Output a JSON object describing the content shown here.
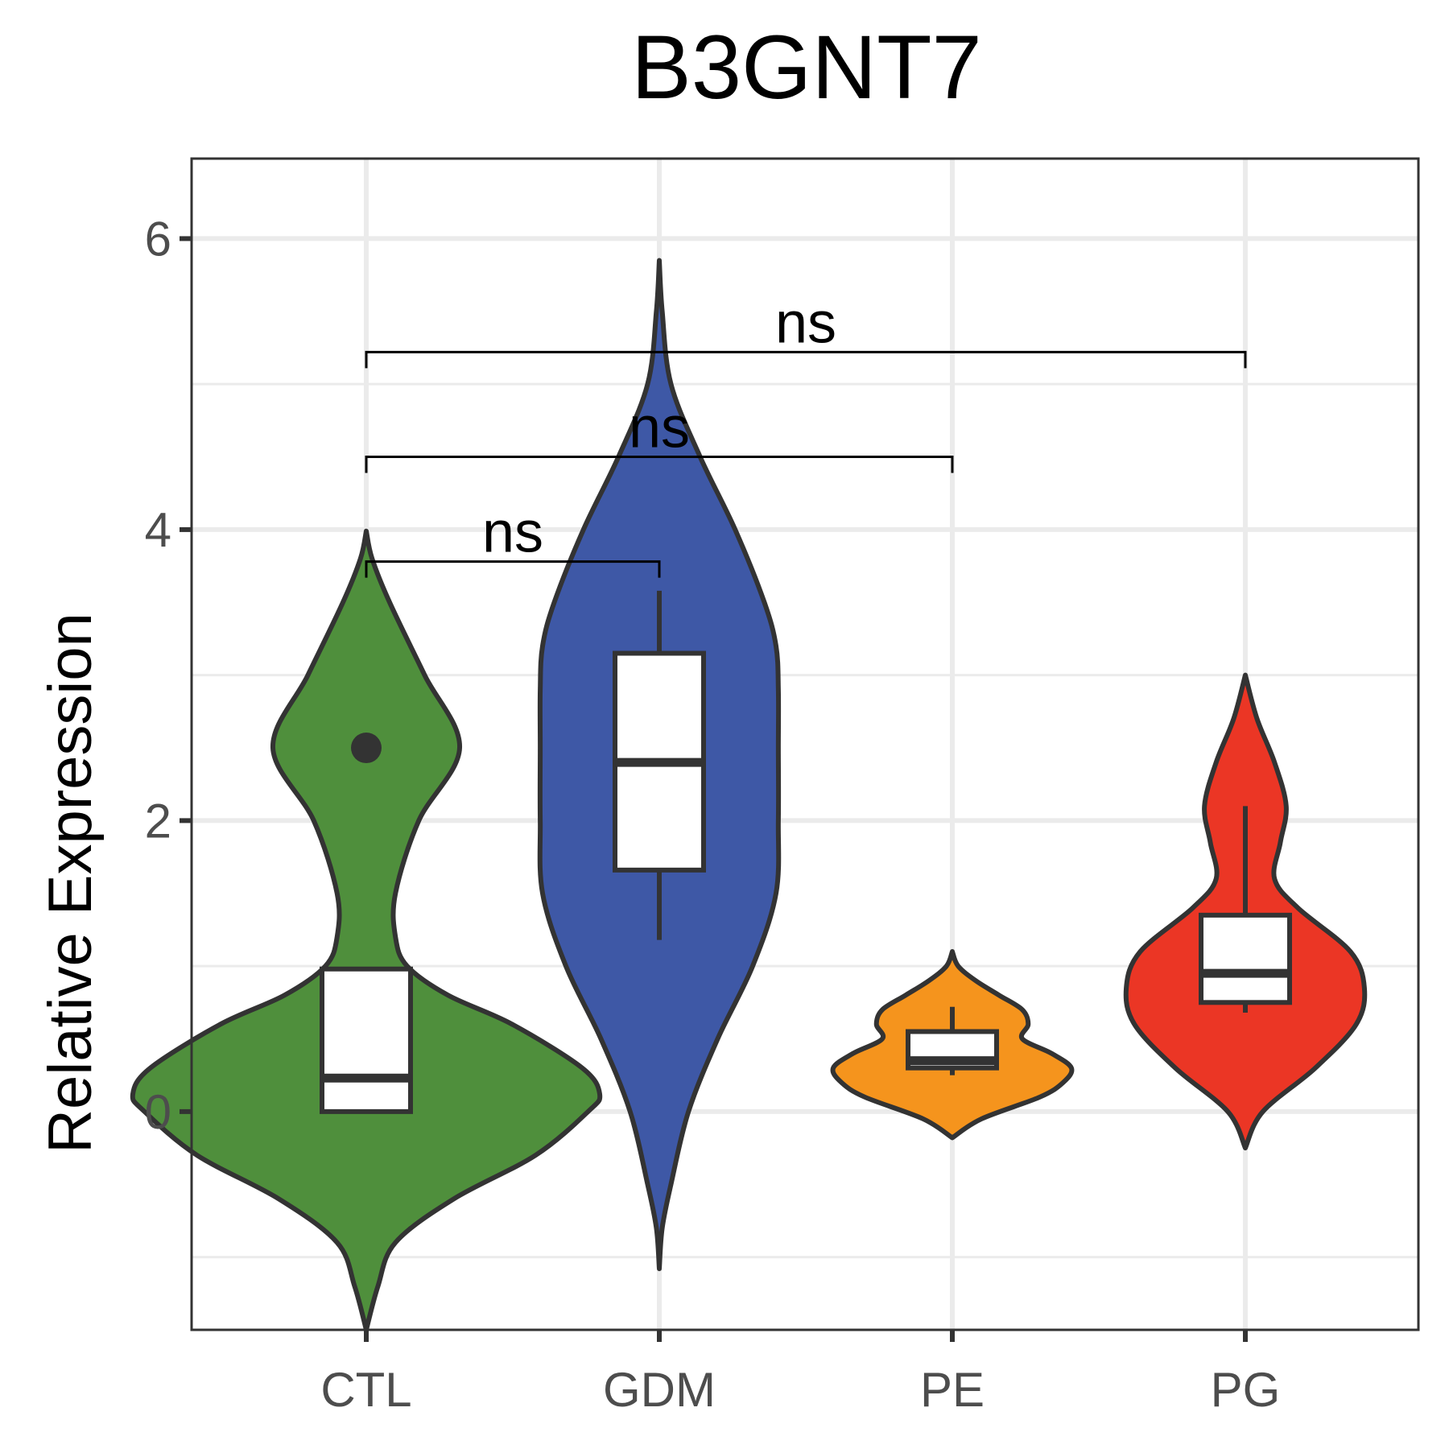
{
  "chart_data": {
    "type": "violin",
    "title": "B3GNT7",
    "xlabel": "",
    "ylabel": "Relative Expression",
    "ylim": [
      -1.5,
      6.55
    ],
    "yticks": [
      0,
      2,
      4,
      6
    ],
    "categories": [
      "CTL",
      "GDM",
      "PE",
      "PG"
    ],
    "grid": true,
    "legend": "none",
    "groups": [
      {
        "name": "CTL",
        "color": "#4f8f3c",
        "box": {
          "lower_whisker": 0,
          "q1": 0,
          "median": 0.23,
          "q3": 0.98,
          "upper_whisker": 0.98
        },
        "outliers": [
          2.5
        ],
        "violin_profile": [
          [
            -1.5,
            0.0
          ],
          [
            -1.2,
            0.02
          ],
          [
            -0.9,
            0.05
          ],
          [
            -0.6,
            0.15
          ],
          [
            -0.3,
            0.29
          ],
          [
            0.0,
            0.38
          ],
          [
            0.12,
            0.4
          ],
          [
            0.3,
            0.37
          ],
          [
            0.6,
            0.25
          ],
          [
            0.8,
            0.14
          ],
          [
            1.0,
            0.07
          ],
          [
            1.2,
            0.05
          ],
          [
            1.5,
            0.05
          ],
          [
            2.0,
            0.09
          ],
          [
            2.5,
            0.16
          ],
          [
            3.0,
            0.1
          ],
          [
            3.5,
            0.04
          ],
          [
            3.8,
            0.01
          ],
          [
            3.99,
            0.0
          ]
        ]
      },
      {
        "name": "GDM",
        "color": "#3e58a6",
        "box": {
          "lower_whisker": 1.18,
          "q1": 1.66,
          "median": 2.4,
          "q3": 3.15,
          "upper_whisker": 3.58
        },
        "outliers": [],
        "violin_profile": [
          [
            -1.08,
            0.0
          ],
          [
            -0.8,
            0.005
          ],
          [
            -0.5,
            0.02
          ],
          [
            0.0,
            0.05
          ],
          [
            0.5,
            0.1
          ],
          [
            1.0,
            0.16
          ],
          [
            1.5,
            0.2
          ],
          [
            2.0,
            0.204
          ],
          [
            2.5,
            0.204
          ],
          [
            2.9,
            0.204
          ],
          [
            3.2,
            0.2
          ],
          [
            3.5,
            0.18
          ],
          [
            4.0,
            0.13
          ],
          [
            4.5,
            0.07
          ],
          [
            5.0,
            0.02
          ],
          [
            5.5,
            0.005
          ],
          [
            5.85,
            0.0
          ]
        ]
      },
      {
        "name": "PE",
        "color": "#f5941d",
        "box": {
          "lower_whisker": 0.25,
          "q1": 0.3,
          "median": 0.35,
          "q3": 0.55,
          "upper_whisker": 0.72
        },
        "outliers": [],
        "violin_profile": [
          [
            -0.18,
            0.0
          ],
          [
            -0.05,
            0.05
          ],
          [
            0.1,
            0.15
          ],
          [
            0.2,
            0.19
          ],
          [
            0.3,
            0.204
          ],
          [
            0.4,
            0.17
          ],
          [
            0.5,
            0.12
          ],
          [
            0.6,
            0.13
          ],
          [
            0.7,
            0.12
          ],
          [
            0.8,
            0.08
          ],
          [
            0.9,
            0.04
          ],
          [
            1.0,
            0.01
          ],
          [
            1.1,
            0.0
          ]
        ]
      },
      {
        "name": "PG",
        "color": "#eb3625",
        "box": {
          "lower_whisker": 0.68,
          "q1": 0.75,
          "median": 0.95,
          "q3": 1.35,
          "upper_whisker": 2.1
        },
        "outliers": [],
        "violin_profile": [
          [
            -0.25,
            0.0
          ],
          [
            0.0,
            0.03
          ],
          [
            0.3,
            0.12
          ],
          [
            0.6,
            0.19
          ],
          [
            0.85,
            0.204
          ],
          [
            1.1,
            0.18
          ],
          [
            1.4,
            0.09
          ],
          [
            1.6,
            0.05
          ],
          [
            1.85,
            0.06
          ],
          [
            2.1,
            0.07
          ],
          [
            2.4,
            0.05
          ],
          [
            2.7,
            0.02
          ],
          [
            3.0,
            0.0
          ]
        ]
      }
    ],
    "comparisons": [
      {
        "group1": "CTL",
        "group2": "GDM",
        "label": "ns",
        "y": 3.78
      },
      {
        "group1": "CTL",
        "group2": "PE",
        "label": "ns",
        "y": 4.5
      },
      {
        "group1": "CTL",
        "group2": "PG",
        "label": "ns",
        "y": 5.22
      }
    ]
  }
}
